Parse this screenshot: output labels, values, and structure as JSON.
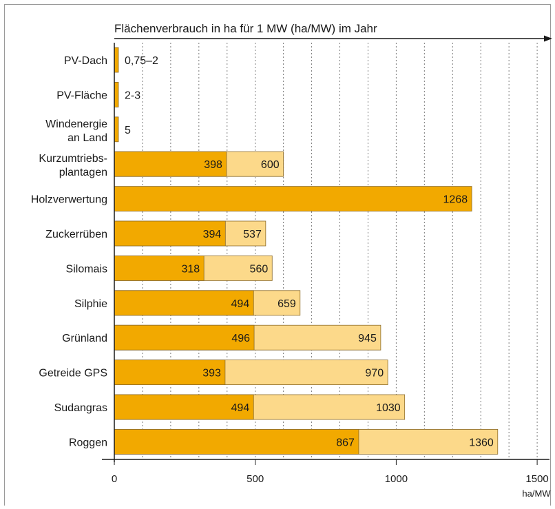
{
  "chart_data": {
    "type": "bar",
    "orientation": "horizontal",
    "title": "Flächenverbrauch in ha für 1 MW (ha/MW) im Jahr",
    "x_unit": "ha/MW",
    "xlim": [
      0,
      1500
    ],
    "x_ticks": [
      0,
      500,
      1000,
      1500
    ],
    "grid": "vertical dotted every 100",
    "categories": [
      [
        "PV-Dach"
      ],
      [
        "PV-Fläche"
      ],
      [
        "Windenergie",
        "an Land"
      ],
      [
        "Kurzumtriebs-",
        "plantagen"
      ],
      [
        "Holzverwertung"
      ],
      [
        "Zuckerrüben"
      ],
      [
        "Silomais"
      ],
      [
        "Silphie"
      ],
      [
        "Grünland"
      ],
      [
        "Getreide GPS"
      ],
      [
        "Sudangras"
      ],
      [
        "Roggen"
      ]
    ],
    "series": [
      {
        "role": "low",
        "color": "#f2a900",
        "values": [
          2,
          2,
          5,
          398,
          1268,
          394,
          318,
          494,
          496,
          393,
          494,
          867
        ],
        "labels": [
          "",
          "",
          "",
          "398",
          "1268",
          "394",
          "318",
          "494",
          "496",
          "393",
          "494",
          "867"
        ]
      },
      {
        "role": "high",
        "color": "#fcd98a",
        "values": [
          null,
          null,
          null,
          600,
          null,
          537,
          560,
          659,
          945,
          970,
          1030,
          1360
        ],
        "labels": [
          "",
          "",
          "",
          "600",
          "",
          "537",
          "560",
          "659",
          "945",
          "970",
          "1030",
          "1360"
        ]
      }
    ],
    "outside_labels": [
      "0,75–2",
      "2-3",
      "5",
      "",
      "",
      "",
      "",
      "",
      "",
      "",
      "",
      ""
    ]
  }
}
